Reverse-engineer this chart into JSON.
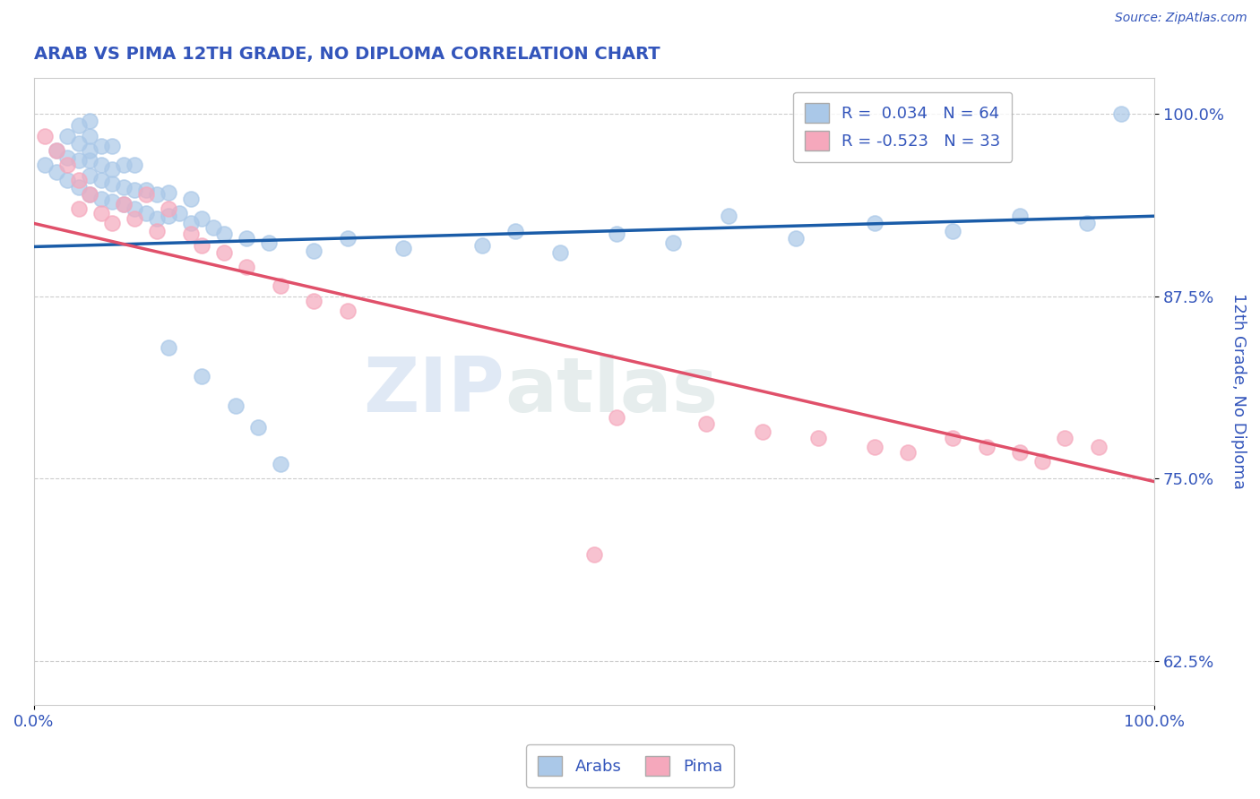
{
  "title": "ARAB VS PIMA 12TH GRADE, NO DIPLOMA CORRELATION CHART",
  "source_text": "Source: ZipAtlas.com",
  "ylabel": "12th Grade, No Diploma",
  "xlim": [
    0.0,
    1.0
  ],
  "ylim": [
    0.595,
    1.025
  ],
  "yticks": [
    0.625,
    0.75,
    0.875,
    1.0
  ],
  "ytick_labels": [
    "62.5%",
    "75.0%",
    "87.5%",
    "100.0%"
  ],
  "xticks": [
    0.0,
    1.0
  ],
  "xtick_labels": [
    "0.0%",
    "100.0%"
  ],
  "legend_line1": "R =  0.034   N = 64",
  "legend_line2": "R = -0.523   N = 33",
  "arab_color": "#aac8e8",
  "pima_color": "#f5a8bc",
  "arab_line_color": "#1a5ca8",
  "pima_line_color": "#e0506a",
  "watermark_zip": "ZIP",
  "watermark_atlas": "atlas",
  "background_color": "#ffffff",
  "grid_color": "#c8c8c8",
  "title_color": "#3355bb",
  "axis_label_color": "#3355bb",
  "tick_label_color": "#3355bb",
  "arab_trend_x0": 0.0,
  "arab_trend_y0": 0.909,
  "arab_trend_x1": 1.0,
  "arab_trend_y1": 0.93,
  "pima_trend_x0": 0.0,
  "pima_trend_y0": 0.925,
  "pima_trend_x1": 1.0,
  "pima_trend_y1": 0.748,
  "arab_scatter_x": [
    0.01,
    0.02,
    0.02,
    0.03,
    0.03,
    0.03,
    0.04,
    0.04,
    0.04,
    0.04,
    0.05,
    0.05,
    0.05,
    0.05,
    0.05,
    0.05,
    0.06,
    0.06,
    0.06,
    0.06,
    0.07,
    0.07,
    0.07,
    0.07,
    0.08,
    0.08,
    0.08,
    0.09,
    0.09,
    0.09,
    0.1,
    0.1,
    0.11,
    0.11,
    0.12,
    0.12,
    0.13,
    0.14,
    0.14,
    0.15,
    0.16,
    0.17,
    0.19,
    0.21,
    0.25,
    0.28,
    0.33,
    0.4,
    0.43,
    0.47,
    0.52,
    0.57,
    0.62,
    0.68,
    0.75,
    0.82,
    0.88,
    0.94,
    0.97,
    0.12,
    0.15,
    0.18,
    0.2,
    0.22
  ],
  "arab_scatter_y": [
    0.965,
    0.96,
    0.975,
    0.955,
    0.97,
    0.985,
    0.95,
    0.968,
    0.98,
    0.992,
    0.945,
    0.958,
    0.968,
    0.975,
    0.985,
    0.995,
    0.942,
    0.955,
    0.965,
    0.978,
    0.94,
    0.952,
    0.962,
    0.978,
    0.938,
    0.95,
    0.965,
    0.935,
    0.948,
    0.965,
    0.932,
    0.948,
    0.928,
    0.945,
    0.93,
    0.946,
    0.932,
    0.925,
    0.942,
    0.928,
    0.922,
    0.918,
    0.915,
    0.912,
    0.906,
    0.915,
    0.908,
    0.91,
    0.92,
    0.905,
    0.918,
    0.912,
    0.93,
    0.915,
    0.925,
    0.92,
    0.93,
    0.925,
    1.0,
    0.84,
    0.82,
    0.8,
    0.785,
    0.76
  ],
  "pima_scatter_x": [
    0.01,
    0.02,
    0.03,
    0.04,
    0.04,
    0.05,
    0.06,
    0.07,
    0.08,
    0.09,
    0.1,
    0.11,
    0.12,
    0.14,
    0.15,
    0.17,
    0.19,
    0.22,
    0.25,
    0.28,
    0.52,
    0.6,
    0.65,
    0.7,
    0.75,
    0.78,
    0.82,
    0.85,
    0.88,
    0.9,
    0.92,
    0.95,
    0.5
  ],
  "pima_scatter_y": [
    0.985,
    0.975,
    0.965,
    0.955,
    0.935,
    0.945,
    0.932,
    0.925,
    0.938,
    0.928,
    0.945,
    0.92,
    0.935,
    0.918,
    0.91,
    0.905,
    0.895,
    0.882,
    0.872,
    0.865,
    0.792,
    0.788,
    0.782,
    0.778,
    0.772,
    0.768,
    0.778,
    0.772,
    0.768,
    0.762,
    0.778,
    0.772,
    0.698
  ]
}
